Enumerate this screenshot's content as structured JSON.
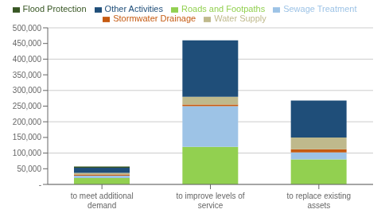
{
  "chart_data": {
    "type": "bar",
    "stacked": true,
    "grid": true,
    "legend": "top",
    "categories": [
      "to meet additional\ndemand",
      "to improve levels of\nservice",
      "to replace existing\nassets"
    ],
    "series": [
      {
        "name": "Roads and Footpaths",
        "color": "#92d050",
        "values": [
          20000,
          120000,
          80000
        ]
      },
      {
        "name": "Sewage Treatment",
        "color": "#9dc3e6",
        "values": [
          8000,
          130000,
          22000
        ]
      },
      {
        "name": "Stormwater Drainage",
        "color": "#c55a11",
        "values": [
          4000,
          5000,
          10000
        ]
      },
      {
        "name": "Water Supply",
        "color": "#bfb98c",
        "values": [
          5000,
          25000,
          38000
        ]
      },
      {
        "name": "Other Activities",
        "color": "#1f4e79",
        "values": [
          16000,
          180000,
          118000
        ]
      },
      {
        "name": "Flood Protection",
        "color": "#375623",
        "values": [
          4000,
          0,
          0
        ]
      }
    ],
    "ylim": [
      0,
      500000
    ],
    "yticks": [
      {
        "value": 0,
        "label": "-"
      },
      {
        "value": 50000,
        "label": "50,000"
      },
      {
        "value": 100000,
        "label": "100,000"
      },
      {
        "value": 150000,
        "label": "150,000"
      },
      {
        "value": 200000,
        "label": "200,000"
      },
      {
        "value": 250000,
        "label": "250,000"
      },
      {
        "value": 300000,
        "label": "300,000"
      },
      {
        "value": 350000,
        "label": "350,000"
      },
      {
        "value": 400000,
        "label": "400,000"
      },
      {
        "value": 450000,
        "label": "450,000"
      },
      {
        "value": 500000,
        "label": "500,000"
      }
    ]
  }
}
